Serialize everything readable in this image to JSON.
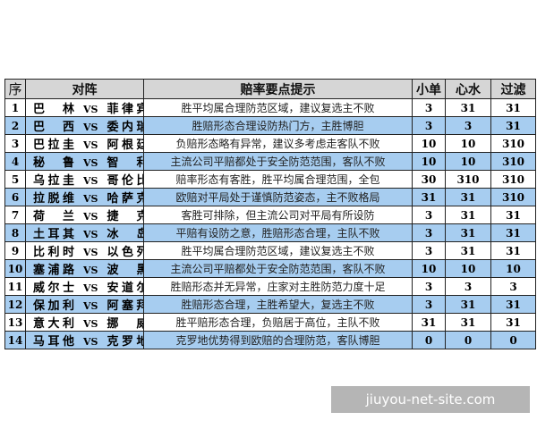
{
  "headers": {
    "seq": "序",
    "match": "对阵",
    "tip": "赔率要点提示",
    "c1": "小单",
    "c2": "心水",
    "c3": "过滤"
  },
  "vs": "VS",
  "rows": [
    {
      "seq": "1",
      "home": "巴　林",
      "away": "菲律宾",
      "tip": "胜平均属合理防范区域，建议复选主不败",
      "c1": "3",
      "c2": "31",
      "c3": "31",
      "blue": false
    },
    {
      "seq": "2",
      "home": "巴　西",
      "away": "委内瑞",
      "tip": "胜赔形态合理设防热门方，主胜博胆",
      "c1": "3",
      "c2": "3",
      "c3": "31",
      "blue": true
    },
    {
      "seq": "3",
      "home": "巴拉圭",
      "away": "阿根廷",
      "tip": "负赔形态略有异常，建议多考虑走客队不败",
      "c1": "10",
      "c2": "10",
      "c3": "310",
      "blue": false
    },
    {
      "seq": "4",
      "home": "秘　鲁",
      "away": "智　利",
      "tip": "主流公司平赔都处于安全防范范围，客队不败",
      "c1": "10",
      "c2": "10",
      "c3": "310",
      "blue": true
    },
    {
      "seq": "5",
      "home": "乌拉圭",
      "away": "哥伦比",
      "tip": "赔率形态有客胜，胜平均属合理范围，全包",
      "c1": "30",
      "c2": "310",
      "c3": "310",
      "blue": false
    },
    {
      "seq": "6",
      "home": "拉脱维",
      "away": "哈萨克",
      "tip": "欧赔对平局处于谨慎防范姿态，主不败格局",
      "c1": "31",
      "c2": "31",
      "c3": "310",
      "blue": true
    },
    {
      "seq": "7",
      "home": "荷　兰",
      "away": "捷　克",
      "tip": "客胜可排除，但主流公司对平局有所设防",
      "c1": "3",
      "c2": "31",
      "c3": "31",
      "blue": false
    },
    {
      "seq": "8",
      "home": "土耳其",
      "away": "冰　岛",
      "tip": "平赔有设防之意，胜赔形态合理，主队不败",
      "c1": "3",
      "c2": "31",
      "c3": "31",
      "blue": true
    },
    {
      "seq": "9",
      "home": "比利时",
      "away": "以色列",
      "tip": "胜平均属合理防范区域，建议复选主不败",
      "c1": "3",
      "c2": "31",
      "c3": "31",
      "blue": false
    },
    {
      "seq": "10",
      "home": "塞浦路",
      "away": "波　黑",
      "tip": "主流公司平赔都处于安全防范范围，客队不败",
      "c1": "10",
      "c2": "10",
      "c3": "10",
      "blue": true
    },
    {
      "seq": "11",
      "home": "威尔士",
      "away": "安道尔",
      "tip": "胜赔形态并无异常，庄家对主胜防范力度十足",
      "c1": "3",
      "c2": "3",
      "c3": "3",
      "blue": false
    },
    {
      "seq": "12",
      "home": "保加利",
      "away": "阿塞拜",
      "tip": "胜赔形态合理，主胜希望大，复选主不败",
      "c1": "3",
      "c2": "31",
      "c3": "31",
      "blue": true
    },
    {
      "seq": "13",
      "home": "意大利",
      "away": "挪　威",
      "tip": "胜平赔形态合理，负赔居于高位，主队不败",
      "c1": "31",
      "c2": "31",
      "c3": "31",
      "blue": false
    },
    {
      "seq": "14",
      "home": "马耳他",
      "away": "克罗地",
      "tip": "克罗地优势得到欧赔的合理防范，客队博胆",
      "c1": "0",
      "c2": "0",
      "c3": "0",
      "blue": true
    }
  ],
  "watermark": "jiuyou-net-site.com",
  "colors": {
    "header_bg": "#d6d6d6",
    "row_blue": "#a7cdf0",
    "border": "#222222"
  }
}
